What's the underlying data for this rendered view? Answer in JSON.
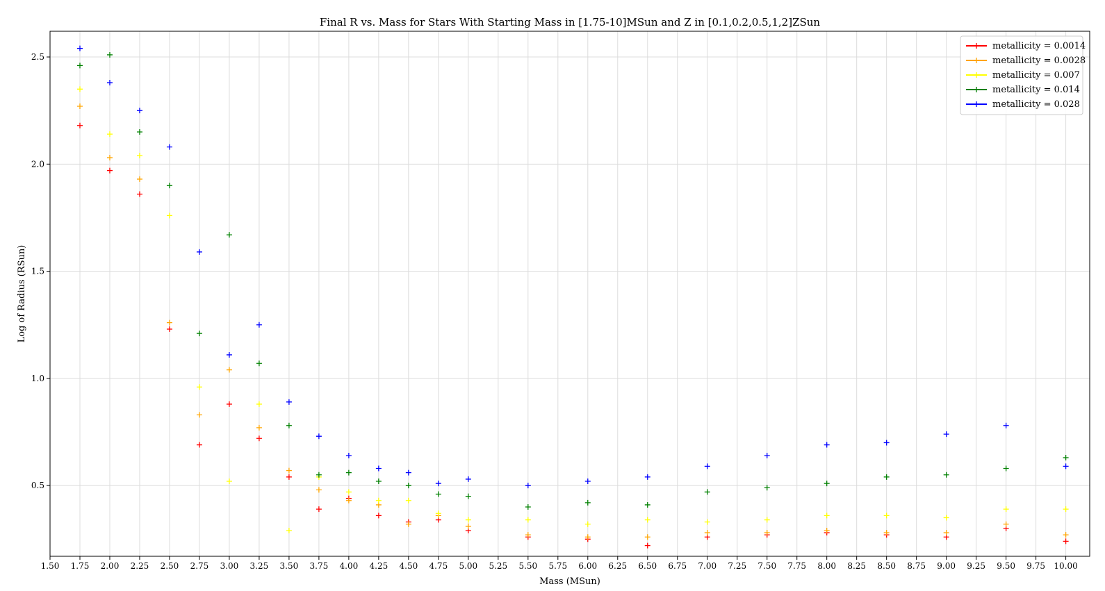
{
  "chart_data": {
    "type": "scatter",
    "title": "Final R vs. Mass for Stars With Starting Mass in [1.75-10]MSun and Z in [0.1,0.2,0.5,1,2]ZSun",
    "xlabel": "Mass (MSun)",
    "ylabel": "Log of Radius (RSun)",
    "xlim": [
      1.5,
      10.2
    ],
    "ylim": [
      0.17,
      2.62
    ],
    "xticks": [
      "1.50",
      "1.75",
      "2.00",
      "2.25",
      "2.50",
      "2.75",
      "3.00",
      "3.25",
      "3.50",
      "3.75",
      "4.00",
      "4.25",
      "4.50",
      "4.75",
      "5.00",
      "5.25",
      "5.50",
      "5.75",
      "6.00",
      "6.25",
      "6.50",
      "6.75",
      "7.00",
      "7.25",
      "7.50",
      "7.75",
      "8.00",
      "8.25",
      "8.50",
      "8.75",
      "9.00",
      "9.25",
      "9.50",
      "9.75",
      "10.00"
    ],
    "yticks": [
      "0.5",
      "1.0",
      "1.5",
      "2.0",
      "2.5"
    ],
    "grid": true,
    "legend_position": "top-right",
    "x": [
      1.75,
      2.0,
      2.25,
      2.5,
      2.75,
      3.0,
      3.25,
      3.5,
      3.75,
      4.0,
      4.25,
      4.5,
      4.75,
      5.0,
      5.5,
      6.0,
      6.5,
      7.0,
      7.5,
      8.0,
      8.5,
      9.0,
      9.5,
      10.0
    ],
    "series": [
      {
        "name": "metallicity = 0.0014",
        "color": "#ff0000",
        "values": [
          2.18,
          1.97,
          1.86,
          1.23,
          0.69,
          0.88,
          0.72,
          0.54,
          0.39,
          0.44,
          0.36,
          0.33,
          0.34,
          0.29,
          0.26,
          0.25,
          0.22,
          0.26,
          0.27,
          0.28,
          0.27,
          0.26,
          0.3,
          0.24
        ]
      },
      {
        "name": "metallicity = 0.0028",
        "color": "#ffa500",
        "values": [
          2.27,
          2.03,
          1.93,
          1.26,
          0.83,
          1.04,
          0.77,
          0.57,
          0.48,
          0.43,
          0.41,
          0.32,
          0.36,
          0.31,
          0.27,
          0.26,
          0.26,
          0.28,
          0.28,
          0.29,
          0.28,
          0.28,
          0.32,
          0.27
        ]
      },
      {
        "name": "metallicity = 0.007",
        "color": "#ffff00",
        "values": [
          2.35,
          2.14,
          2.04,
          1.76,
          0.96,
          0.52,
          0.88,
          0.29,
          0.54,
          0.47,
          0.43,
          0.43,
          0.37,
          0.34,
          0.34,
          0.32,
          0.34,
          0.33,
          0.34,
          0.36,
          0.36,
          0.35,
          0.39,
          0.39
        ]
      },
      {
        "name": "metallicity = 0.014",
        "color": "#008000",
        "values": [
          2.46,
          2.51,
          2.15,
          1.9,
          1.21,
          1.67,
          1.07,
          0.78,
          0.55,
          0.56,
          0.52,
          0.5,
          0.46,
          0.45,
          0.4,
          0.42,
          0.41,
          0.47,
          0.49,
          0.51,
          0.54,
          0.55,
          0.58,
          0.63
        ]
      },
      {
        "name": "metallicity = 0.028",
        "color": "#0000ff",
        "values": [
          2.54,
          2.38,
          2.25,
          2.08,
          1.59,
          1.11,
          1.25,
          0.89,
          0.73,
          0.64,
          0.58,
          0.56,
          0.51,
          0.53,
          0.5,
          0.52,
          0.54,
          0.59,
          0.64,
          0.69,
          0.7,
          0.74,
          0.78,
          0.59
        ]
      }
    ]
  }
}
